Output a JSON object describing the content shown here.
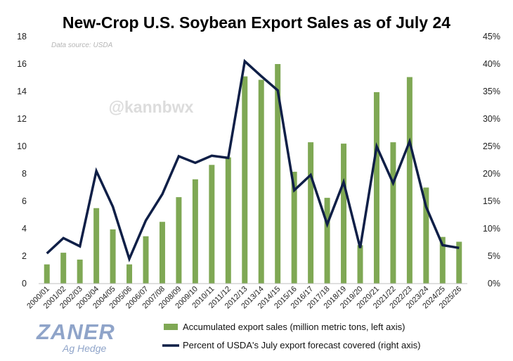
{
  "title": "New-Crop U.S. Soybean Export Sales as of July 24",
  "source": "Data source: USDA",
  "watermark": "@kannbwx",
  "logo": {
    "main": "ZANER",
    "sub": "Ag Hedge"
  },
  "colors": {
    "bar": "#7fa854",
    "line": "#0f1f47"
  },
  "chart_data": {
    "type": "bar",
    "categories": [
      "2000/01",
      "2001/02",
      "2002/03",
      "2003/04",
      "2004/05",
      "2005/06",
      "2006/07",
      "2007/08",
      "2008/09",
      "2009/10",
      "2010/11",
      "2011/12",
      "2012/13",
      "2013/14",
      "2014/15",
      "2015/16",
      "2016/17",
      "2017/18",
      "2018/19",
      "2019/20",
      "2020/21",
      "2021/22",
      "2022/23",
      "2023/24",
      "2024/25",
      "2025/26"
    ],
    "series": [
      {
        "name": "Accumulated export sales (million metric tons, left axis)",
        "type": "bar",
        "axis": "left",
        "values": [
          1.4,
          2.25,
          1.75,
          5.5,
          3.95,
          1.4,
          3.45,
          4.5,
          6.3,
          7.6,
          8.65,
          9.2,
          15.1,
          14.85,
          16.0,
          8.15,
          10.3,
          6.25,
          10.2,
          2.8,
          13.95,
          10.3,
          15.05,
          7.0,
          3.4,
          3.05
        ]
      },
      {
        "name": "Percent of USDA's July export forecast covered (right axis)",
        "type": "line",
        "axis": "right",
        "values": [
          5.5,
          8.3,
          6.8,
          20.5,
          14.0,
          4.5,
          11.5,
          16.3,
          23.2,
          22.0,
          23.3,
          22.9,
          40.5,
          37.8,
          35.2,
          17.0,
          19.8,
          10.8,
          18.5,
          6.5,
          25.0,
          18.3,
          25.9,
          14.0,
          7.0,
          6.5
        ]
      }
    ],
    "yleft": {
      "min": 0,
      "max": 18,
      "ticks": [
        0,
        2,
        4,
        6,
        8,
        10,
        12,
        14,
        16,
        18
      ]
    },
    "yright": {
      "min": 0,
      "max": 45,
      "ticks": [
        "0%",
        "5%",
        "10%",
        "15%",
        "20%",
        "25%",
        "30%",
        "35%",
        "40%",
        "45%"
      ]
    },
    "grid": false,
    "legend_position": "bottom"
  }
}
